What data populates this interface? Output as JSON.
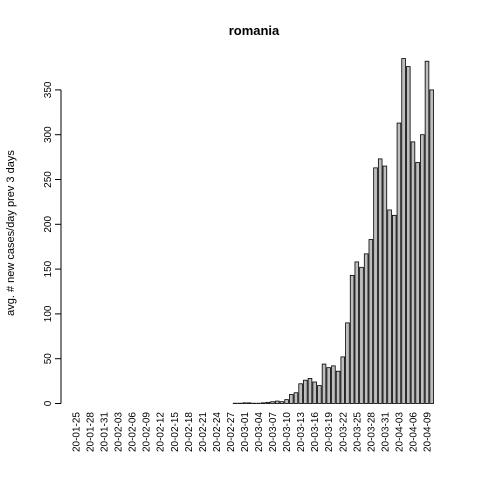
{
  "chart_data": {
    "type": "bar",
    "title": "romania",
    "xlabel": "",
    "ylabel": "avg. # new cases/day prev  3  days",
    "ylim": [
      0,
      390
    ],
    "yticks": [
      0,
      50,
      100,
      150,
      200,
      250,
      300,
      350
    ],
    "grid": false,
    "tick_labels": [
      "20-01-25",
      "20-01-28",
      "20-01-31",
      "20-02-03",
      "20-02-06",
      "20-02-09",
      "20-02-12",
      "20-02-15",
      "20-02-18",
      "20-02-21",
      "20-02-24",
      "20-02-27",
      "20-03-01",
      "20-03-04",
      "20-03-07",
      "20-03-10",
      "20-03-13",
      "20-03-16",
      "20-03-19",
      "20-03-22",
      "20-03-25",
      "20-03-28",
      "20-03-31",
      "20-04-03",
      "20-04-06",
      "20-04-09"
    ],
    "categories": [
      "20-01-25",
      "20-01-26",
      "20-01-27",
      "20-01-28",
      "20-01-29",
      "20-01-30",
      "20-01-31",
      "20-02-01",
      "20-02-02",
      "20-02-03",
      "20-02-04",
      "20-02-05",
      "20-02-06",
      "20-02-07",
      "20-02-08",
      "20-02-09",
      "20-02-10",
      "20-02-11",
      "20-02-12",
      "20-02-13",
      "20-02-14",
      "20-02-15",
      "20-02-16",
      "20-02-17",
      "20-02-18",
      "20-02-19",
      "20-02-20",
      "20-02-21",
      "20-02-22",
      "20-02-23",
      "20-02-24",
      "20-02-25",
      "20-02-26",
      "20-02-27",
      "20-02-28",
      "20-02-29",
      "20-03-01",
      "20-03-02",
      "20-03-03",
      "20-03-04",
      "20-03-05",
      "20-03-06",
      "20-03-07",
      "20-03-08",
      "20-03-09",
      "20-03-10",
      "20-03-11",
      "20-03-12",
      "20-03-13",
      "20-03-14",
      "20-03-15",
      "20-03-16",
      "20-03-17",
      "20-03-18",
      "20-03-19",
      "20-03-20",
      "20-03-21",
      "20-03-22",
      "20-03-23",
      "20-03-24",
      "20-03-25",
      "20-03-26",
      "20-03-27",
      "20-03-28",
      "20-03-29",
      "20-03-30",
      "20-03-31",
      "20-04-01",
      "20-04-02",
      "20-04-03",
      "20-04-04",
      "20-04-05",
      "20-04-06",
      "20-04-07",
      "20-04-08",
      "20-04-09",
      "20-04-10"
    ],
    "values": [
      0,
      0,
      0,
      0,
      0,
      0,
      0,
      0,
      0,
      0,
      0,
      0,
      0,
      0,
      0,
      0,
      0,
      0,
      0,
      0,
      0,
      0,
      0,
      0,
      0,
      0,
      0,
      0,
      0,
      0,
      0,
      0,
      0,
      0,
      0.3,
      0.3,
      0.7,
      0.7,
      0.3,
      0.3,
      0.7,
      1.3,
      2,
      2.7,
      2,
      4.3,
      10,
      12,
      22,
      26,
      28,
      24,
      20,
      44,
      40,
      42,
      36,
      52,
      90,
      143,
      158,
      152,
      167,
      183,
      263,
      273,
      265,
      216,
      210,
      313,
      385,
      376,
      292,
      269,
      300,
      382,
      350
    ]
  }
}
